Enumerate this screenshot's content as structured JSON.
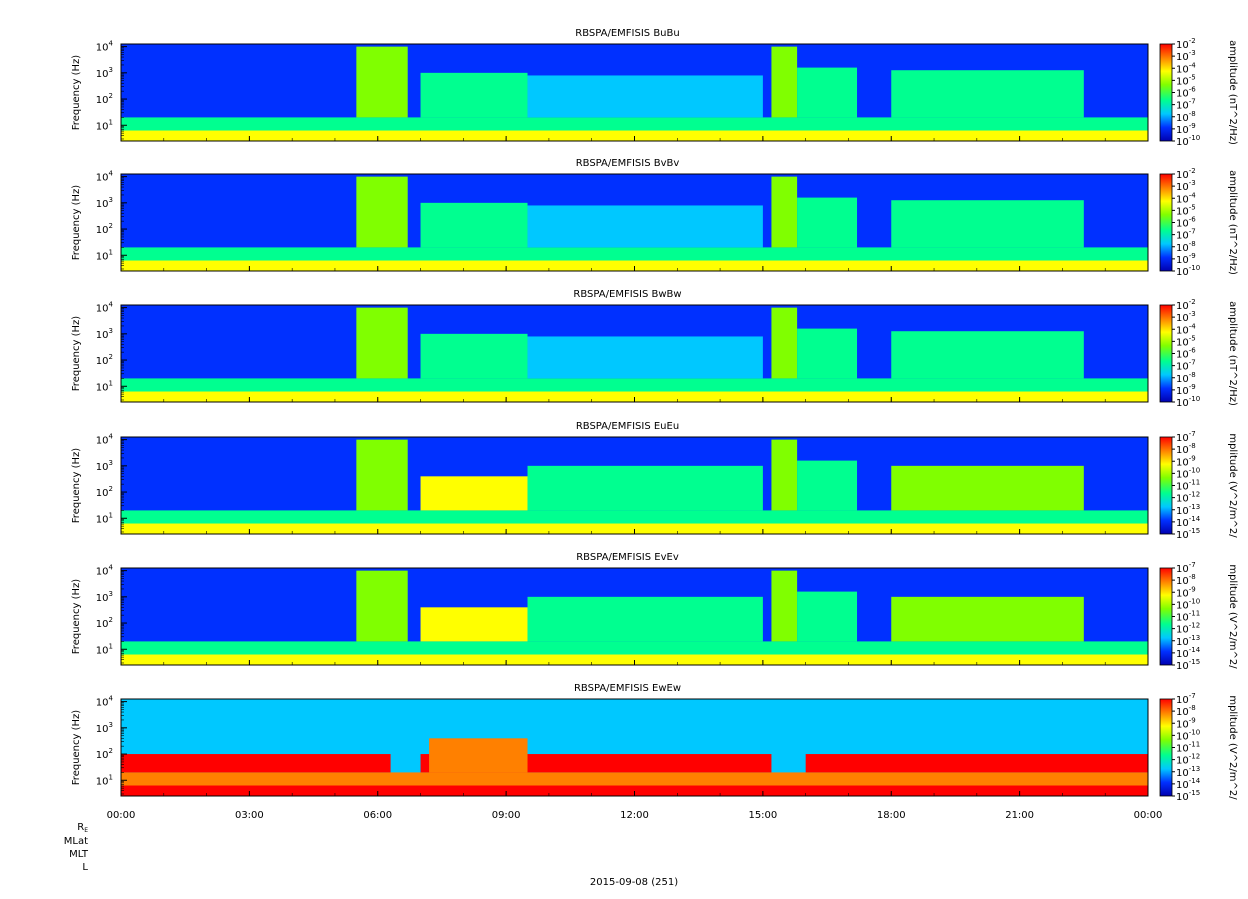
{
  "chart_data": [
    {
      "type": "heatmap",
      "title": "RBSPA/EMFISIS  BuBu",
      "ylabel": "Frequency (Hz)",
      "yscale": "log",
      "yticks": [
        {
          "exp": "1"
        },
        {
          "exp": "2"
        },
        {
          "exp": "3"
        },
        {
          "exp": "4"
        }
      ],
      "colorbar": {
        "label": "amplitude (nT^2/Hz)",
        "scale": "log",
        "range_exp": [
          -10,
          -2
        ],
        "ticks": [
          "-2",
          "-3",
          "-4",
          "-5",
          "-6",
          "-7",
          "-8",
          "-9",
          "-10"
        ]
      },
      "background_level": 0.08,
      "floor_level": 0.55,
      "features": [
        {
          "start_hour": 5.5,
          "end_hour": 6.7,
          "top_freq_exp": 4.0,
          "level": 0.55
        },
        {
          "start_hour": 7.0,
          "end_hour": 9.5,
          "top_freq_exp": 3.0,
          "level": 0.45
        },
        {
          "start_hour": 9.5,
          "end_hour": 15.0,
          "top_freq_exp": 2.9,
          "level": 0.35
        },
        {
          "start_hour": 15.2,
          "end_hour": 15.8,
          "top_freq_exp": 4.0,
          "level": 0.55
        },
        {
          "start_hour": 15.8,
          "end_hour": 17.2,
          "top_freq_exp": 3.2,
          "level": 0.38
        },
        {
          "start_hour": 18.0,
          "end_hour": 22.5,
          "top_freq_exp": 3.1,
          "level": 0.42
        }
      ]
    },
    {
      "type": "heatmap",
      "title": "RBSPA/EMFISIS  BvBv",
      "ylabel": "Frequency (Hz)",
      "yscale": "log",
      "yticks": [
        {
          "exp": "1"
        },
        {
          "exp": "2"
        },
        {
          "exp": "3"
        },
        {
          "exp": "4"
        }
      ],
      "colorbar": {
        "label": "amplitude (nT^2/Hz)",
        "scale": "log",
        "range_exp": [
          -10,
          -2
        ],
        "ticks": [
          "-2",
          "-3",
          "-4",
          "-5",
          "-6",
          "-7",
          "-8",
          "-9",
          "-10"
        ]
      },
      "background_level": 0.08,
      "floor_level": 0.55,
      "features": [
        {
          "start_hour": 5.5,
          "end_hour": 6.7,
          "top_freq_exp": 4.0,
          "level": 0.55
        },
        {
          "start_hour": 7.0,
          "end_hour": 9.5,
          "top_freq_exp": 3.0,
          "level": 0.45
        },
        {
          "start_hour": 9.5,
          "end_hour": 15.0,
          "top_freq_exp": 2.9,
          "level": 0.35
        },
        {
          "start_hour": 15.2,
          "end_hour": 15.8,
          "top_freq_exp": 4.0,
          "level": 0.55
        },
        {
          "start_hour": 15.8,
          "end_hour": 17.2,
          "top_freq_exp": 3.2,
          "level": 0.38
        },
        {
          "start_hour": 18.0,
          "end_hour": 22.5,
          "top_freq_exp": 3.1,
          "level": 0.42
        }
      ]
    },
    {
      "type": "heatmap",
      "title": "RBSPA/EMFISIS  BwBw",
      "ylabel": "Frequency (Hz)",
      "yscale": "log",
      "yticks": [
        {
          "exp": "1"
        },
        {
          "exp": "2"
        },
        {
          "exp": "3"
        },
        {
          "exp": "4"
        }
      ],
      "colorbar": {
        "label": "amplitude (nT^2/Hz)",
        "scale": "log",
        "range_exp": [
          -10,
          -2
        ],
        "ticks": [
          "-2",
          "-3",
          "-4",
          "-5",
          "-6",
          "-7",
          "-8",
          "-9",
          "-10"
        ]
      },
      "background_level": 0.08,
      "floor_level": 0.55,
      "features": [
        {
          "start_hour": 5.5,
          "end_hour": 6.7,
          "top_freq_exp": 4.0,
          "level": 0.55
        },
        {
          "start_hour": 7.0,
          "end_hour": 9.5,
          "top_freq_exp": 3.0,
          "level": 0.45
        },
        {
          "start_hour": 9.5,
          "end_hour": 15.0,
          "top_freq_exp": 2.9,
          "level": 0.35
        },
        {
          "start_hour": 15.2,
          "end_hour": 15.8,
          "top_freq_exp": 4.0,
          "level": 0.55
        },
        {
          "start_hour": 15.8,
          "end_hour": 17.2,
          "top_freq_exp": 3.2,
          "level": 0.38
        },
        {
          "start_hour": 18.0,
          "end_hour": 22.5,
          "top_freq_exp": 3.1,
          "level": 0.42
        }
      ]
    },
    {
      "type": "heatmap",
      "title": "RBSPA/EMFISIS  EuEu",
      "ylabel": "Frequency (Hz)",
      "yscale": "log",
      "yticks": [
        {
          "exp": "1"
        },
        {
          "exp": "2"
        },
        {
          "exp": "3"
        },
        {
          "exp": "4"
        }
      ],
      "colorbar": {
        "label": "mplitude (V^2/m^2/",
        "scale": "log",
        "range_exp": [
          -15,
          -7
        ],
        "ticks": [
          "-7",
          "-8",
          "-9",
          "-10",
          "-11",
          "-12",
          "-13",
          "-14",
          "-15"
        ]
      },
      "background_level": 0.1,
      "floor_level": 0.5,
      "features": [
        {
          "start_hour": 5.5,
          "end_hour": 6.7,
          "top_freq_exp": 4.0,
          "level": 0.5
        },
        {
          "start_hour": 7.0,
          "end_hour": 9.5,
          "top_freq_exp": 2.6,
          "level": 0.7
        },
        {
          "start_hour": 9.5,
          "end_hour": 15.0,
          "top_freq_exp": 3.0,
          "level": 0.45
        },
        {
          "start_hour": 15.2,
          "end_hour": 15.8,
          "top_freq_exp": 4.0,
          "level": 0.5
        },
        {
          "start_hour": 15.8,
          "end_hour": 17.2,
          "top_freq_exp": 3.2,
          "level": 0.45
        },
        {
          "start_hour": 18.0,
          "end_hour": 22.5,
          "top_freq_exp": 3.0,
          "level": 0.5
        }
      ]
    },
    {
      "type": "heatmap",
      "title": "RBSPA/EMFISIS  EvEv",
      "ylabel": "Frequency (Hz)",
      "yscale": "log",
      "yticks": [
        {
          "exp": "1"
        },
        {
          "exp": "2"
        },
        {
          "exp": "3"
        },
        {
          "exp": "4"
        }
      ],
      "colorbar": {
        "label": "mplitude (V^2/m^2/",
        "scale": "log",
        "range_exp": [
          -15,
          -7
        ],
        "ticks": [
          "-7",
          "-8",
          "-9",
          "-10",
          "-11",
          "-12",
          "-13",
          "-14",
          "-15"
        ]
      },
      "background_level": 0.1,
      "floor_level": 0.5,
      "features": [
        {
          "start_hour": 5.5,
          "end_hour": 6.7,
          "top_freq_exp": 4.0,
          "level": 0.5
        },
        {
          "start_hour": 7.0,
          "end_hour": 9.5,
          "top_freq_exp": 2.6,
          "level": 0.7
        },
        {
          "start_hour": 9.5,
          "end_hour": 15.0,
          "top_freq_exp": 3.0,
          "level": 0.45
        },
        {
          "start_hour": 15.2,
          "end_hour": 15.8,
          "top_freq_exp": 4.0,
          "level": 0.5
        },
        {
          "start_hour": 15.8,
          "end_hour": 17.2,
          "top_freq_exp": 3.2,
          "level": 0.45
        },
        {
          "start_hour": 18.0,
          "end_hour": 22.5,
          "top_freq_exp": 3.0,
          "level": 0.5
        }
      ]
    },
    {
      "type": "heatmap",
      "title": "RBSPA/EMFISIS  EwEw",
      "ylabel": "Frequency (Hz)",
      "yscale": "log",
      "yticks": [
        {
          "exp": "1"
        },
        {
          "exp": "2"
        },
        {
          "exp": "3"
        },
        {
          "exp": "4"
        }
      ],
      "colorbar": {
        "label": "mplitude (V^2/m^2/",
        "scale": "log",
        "range_exp": [
          -15,
          -7
        ],
        "ticks": [
          "-7",
          "-8",
          "-9",
          "-10",
          "-11",
          "-12",
          "-13",
          "-14",
          "-15"
        ]
      },
      "background_level": 0.3,
      "floor_level": 0.95,
      "features": [
        {
          "start_hour": 0.0,
          "end_hour": 6.3,
          "top_freq_exp": 2.0,
          "level": 0.97
        },
        {
          "start_hour": 7.0,
          "end_hour": 15.2,
          "top_freq_exp": 2.0,
          "level": 0.97
        },
        {
          "start_hour": 7.2,
          "end_hour": 9.5,
          "top_freq_exp": 2.6,
          "level": 0.8
        },
        {
          "start_hour": 16.0,
          "end_hour": 24.0,
          "top_freq_exp": 2.0,
          "level": 0.97
        }
      ]
    }
  ],
  "x_axis": {
    "ticks": [
      {
        "hour": 0,
        "label": "00:00"
      },
      {
        "hour": 3,
        "label": "03:00"
      },
      {
        "hour": 6,
        "label": "06:00"
      },
      {
        "hour": 9,
        "label": "09:00"
      },
      {
        "hour": 12,
        "label": "12:00"
      },
      {
        "hour": 15,
        "label": "15:00"
      },
      {
        "hour": 18,
        "label": "18:00"
      },
      {
        "hour": 21,
        "label": "21:00"
      },
      {
        "hour": 24,
        "label": "00:00"
      }
    ],
    "date_label": "2015-09-08 (251)"
  },
  "ephemeris_labels": {
    "re_main": "R",
    "re_sub": "E",
    "mlat": "MLat",
    "mlt": "MLT",
    "l": "L"
  },
  "ytick_base": "10"
}
